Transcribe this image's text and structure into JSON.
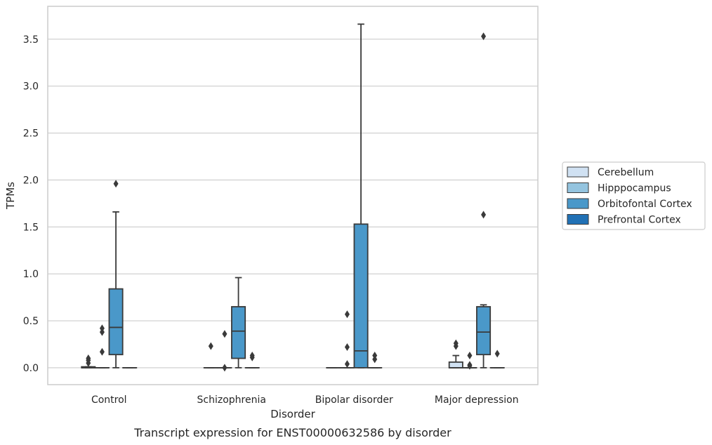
{
  "chart_data": {
    "type": "box",
    "xlabel": "Disorder",
    "ylabel": "TPMs",
    "caption": "Transcript expression for ENST00000632586 by disorder",
    "ylim": [
      -0.18,
      3.85
    ],
    "yticks": [
      "0.0",
      "0.5",
      "1.0",
      "1.5",
      "2.0",
      "2.5",
      "3.0",
      "3.5"
    ],
    "ytick_values": [
      0.0,
      0.5,
      1.0,
      1.5,
      2.0,
      2.5,
      3.0,
      3.5
    ],
    "grid": "horizontal",
    "legend_position": "right",
    "categories": [
      "Control",
      "Schizophrenia",
      "Bipolar disorder",
      "Major depression"
    ],
    "series": [
      {
        "name": "Cerebellum",
        "color": "#d0e1f2",
        "boxes": [
          {
            "q1": 0.0,
            "median": 0.0,
            "q3": 0.01,
            "whislo": 0.0,
            "whishi": 0.01,
            "fliers": [
              0.05,
              0.08,
              0.1
            ]
          },
          {
            "q1": 0.0,
            "median": 0.0,
            "q3": 0.0,
            "whislo": 0.0,
            "whishi": 0.0,
            "fliers": [
              0.23
            ]
          },
          {
            "q1": 0.0,
            "median": 0.0,
            "q3": 0.0,
            "whislo": 0.0,
            "whishi": 0.0,
            "fliers": []
          },
          {
            "q1": 0.0,
            "median": 0.0,
            "q3": 0.06,
            "whislo": 0.0,
            "whishi": 0.13,
            "fliers": [
              0.23,
              0.26
            ]
          }
        ]
      },
      {
        "name": "Hipppocampus",
        "color": "#94c4df",
        "boxes": [
          {
            "q1": 0.0,
            "median": 0.0,
            "q3": 0.0,
            "whislo": 0.0,
            "whishi": 0.0,
            "fliers": [
              0.17,
              0.38,
              0.42
            ]
          },
          {
            "q1": 0.0,
            "median": 0.0,
            "q3": 0.0,
            "whislo": 0.0,
            "whishi": 0.0,
            "fliers": [
              0.0,
              0.36
            ]
          },
          {
            "q1": 0.0,
            "median": 0.0,
            "q3": 0.0,
            "whislo": 0.0,
            "whishi": 0.0,
            "fliers": [
              0.04,
              0.22,
              0.57
            ]
          },
          {
            "q1": 0.0,
            "median": 0.0,
            "q3": 0.0,
            "whislo": 0.0,
            "whishi": 0.0,
            "fliers": [
              0.02,
              0.03,
              0.13
            ]
          }
        ]
      },
      {
        "name": "Orbitofontal Cortex",
        "color": "#4a98c9",
        "boxes": [
          {
            "q1": 0.14,
            "median": 0.43,
            "q3": 0.84,
            "whislo": 0.0,
            "whishi": 1.66,
            "fliers": [
              1.96
            ]
          },
          {
            "q1": 0.1,
            "median": 0.39,
            "q3": 0.65,
            "whislo": 0.0,
            "whishi": 0.96,
            "fliers": []
          },
          {
            "q1": 0.0,
            "median": 0.18,
            "q3": 1.53,
            "whislo": 0.0,
            "whishi": 3.66,
            "fliers": []
          },
          {
            "q1": 0.14,
            "median": 0.38,
            "q3": 0.65,
            "whislo": 0.0,
            "whishi": 0.67,
            "fliers": [
              1.63,
              3.53
            ]
          }
        ]
      },
      {
        "name": "Prefrontal Cortex",
        "color": "#2171b5",
        "boxes": [
          {
            "q1": 0.0,
            "median": 0.0,
            "q3": 0.0,
            "whislo": 0.0,
            "whishi": 0.0,
            "fliers": []
          },
          {
            "q1": 0.0,
            "median": 0.0,
            "q3": 0.0,
            "whislo": 0.0,
            "whishi": 0.0,
            "fliers": [
              0.11,
              0.13
            ]
          },
          {
            "q1": 0.0,
            "median": 0.0,
            "q3": 0.0,
            "whislo": 0.0,
            "whishi": 0.0,
            "fliers": [
              0.09,
              0.13
            ]
          },
          {
            "q1": 0.0,
            "median": 0.0,
            "q3": 0.0,
            "whislo": 0.0,
            "whishi": 0.0,
            "fliers": [
              0.15
            ]
          }
        ]
      }
    ]
  }
}
